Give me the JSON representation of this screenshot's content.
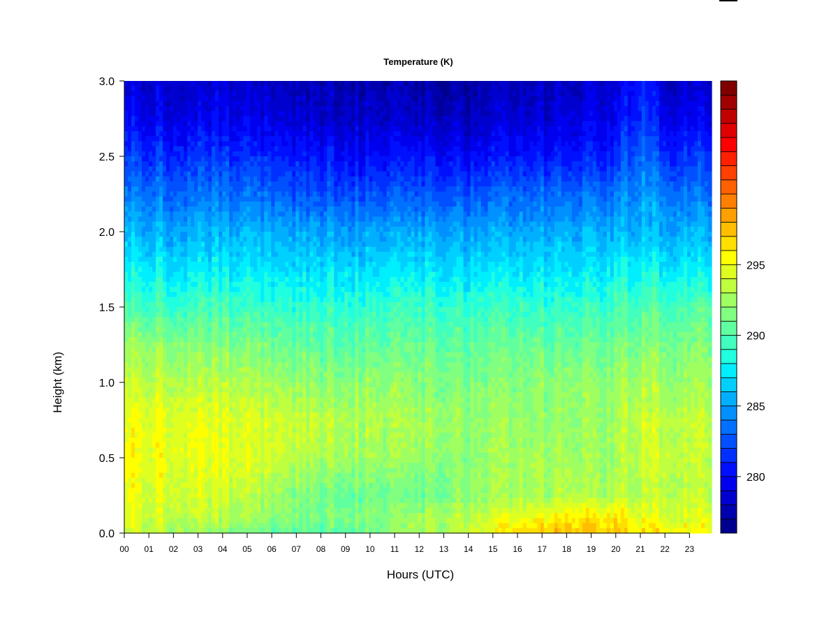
{
  "chart_data": {
    "type": "heatmap",
    "title": "Temperature (K)",
    "xlabel": "Hours (UTC)",
    "ylabel": "Height (km)",
    "x_tick_labels": [
      "00",
      "01",
      "02",
      "03",
      "04",
      "05",
      "06",
      "07",
      "08",
      "09",
      "10",
      "11",
      "12",
      "13",
      "14",
      "15",
      "16",
      "17",
      "18",
      "19",
      "20",
      "21",
      "22",
      "23"
    ],
    "xlim": [
      0,
      23.9
    ],
    "y_ticks": [
      0.0,
      0.5,
      1.0,
      1.5,
      2.0,
      2.5,
      3.0
    ],
    "y_tick_labels": [
      "0.0",
      "0.5",
      "1.0",
      "1.5",
      "2.0",
      "2.5",
      "3.0"
    ],
    "ylim": [
      0,
      3.0
    ],
    "colorbar": {
      "range": [
        276,
        299
      ],
      "step": 1,
      "ticks": [
        280,
        285,
        290,
        295
      ],
      "tick_labels": [
        "280",
        "285",
        "290",
        "295"
      ],
      "colors": [
        "#00008f",
        "#0000af",
        "#0000cf",
        "#0000ef",
        "#0010ff",
        "#0030ff",
        "#0050ff",
        "#0070ff",
        "#0090ff",
        "#00b0ff",
        "#00d0ff",
        "#00efff",
        "#20ffdf",
        "#40ffbf",
        "#60ff9f",
        "#80ff80",
        "#a0ff60",
        "#bfff40",
        "#dfff20",
        "#ffff00",
        "#ffdf00",
        "#ffbf00",
        "#ff9f00",
        "#ff8000",
        "#ff6000",
        "#ff4000",
        "#ff2000",
        "#ff0000",
        "#df0000",
        "#bf0000",
        "#9f0000",
        "#800000"
      ]
    },
    "hours": [
      0,
      2,
      4,
      6,
      8,
      10,
      12,
      14,
      16,
      18,
      20,
      21,
      22,
      23.9
    ],
    "heights_km": [
      0.0,
      0.1,
      0.25,
      0.5,
      0.75,
      1.0,
      1.25,
      1.5,
      1.75,
      2.0,
      2.25,
      2.5,
      2.75,
      3.0
    ],
    "temperature_k": [
      [
        294.5,
        293.0,
        291.5,
        290.5,
        290.0,
        291.0,
        292.0,
        293.5,
        296.5,
        297.5,
        297.0,
        296.5,
        296.0,
        295.5
      ],
      [
        294.5,
        294.0,
        293.0,
        292.0,
        291.5,
        291.5,
        292.5,
        293.5,
        294.5,
        296.0,
        296.0,
        295.0,
        294.5,
        294.5
      ],
      [
        295.0,
        294.5,
        294.0,
        292.5,
        291.0,
        291.0,
        290.5,
        292.0,
        292.5,
        293.0,
        293.0,
        293.5,
        293.5,
        293.5
      ],
      [
        295.5,
        295.0,
        294.5,
        294.0,
        293.0,
        292.5,
        292.0,
        292.0,
        292.5,
        292.5,
        292.5,
        294.0,
        294.0,
        293.5
      ],
      [
        295.0,
        295.0,
        294.5,
        294.0,
        293.5,
        293.0,
        292.5,
        292.0,
        292.0,
        292.0,
        292.5,
        294.0,
        293.5,
        293.5
      ],
      [
        294.0,
        293.5,
        293.0,
        292.5,
        292.0,
        292.0,
        291.5,
        291.5,
        291.5,
        292.0,
        292.0,
        293.0,
        292.5,
        292.5
      ],
      [
        292.5,
        292.0,
        291.5,
        291.0,
        290.5,
        290.5,
        290.5,
        290.5,
        290.5,
        290.5,
        291.0,
        291.5,
        291.5,
        291.5
      ],
      [
        290.0,
        289.5,
        289.5,
        289.0,
        289.0,
        289.0,
        289.0,
        289.0,
        289.0,
        289.0,
        289.5,
        290.0,
        290.0,
        290.0
      ],
      [
        288.0,
        287.5,
        287.5,
        287.0,
        287.0,
        287.0,
        287.0,
        287.0,
        287.0,
        287.0,
        287.5,
        288.0,
        287.5,
        287.5
      ],
      [
        286.0,
        285.5,
        285.5,
        285.5,
        285.0,
        285.0,
        285.0,
        285.0,
        285.0,
        285.5,
        285.5,
        286.0,
        285.5,
        285.5
      ],
      [
        284.0,
        283.5,
        283.5,
        283.0,
        282.5,
        282.5,
        282.5,
        282.5,
        283.0,
        283.0,
        283.5,
        285.0,
        284.0,
        283.5
      ],
      [
        282.0,
        281.5,
        281.5,
        281.0,
        280.5,
        280.0,
        280.0,
        280.0,
        280.5,
        280.5,
        281.0,
        283.5,
        281.5,
        281.5
      ],
      [
        280.0,
        279.5,
        279.5,
        279.0,
        278.5,
        278.5,
        278.0,
        278.0,
        278.5,
        279.0,
        279.5,
        282.0,
        279.5,
        279.5
      ],
      [
        279.0,
        278.5,
        278.5,
        278.0,
        277.5,
        277.5,
        277.0,
        277.0,
        277.5,
        278.0,
        278.5,
        281.0,
        278.5,
        278.5
      ]
    ]
  }
}
